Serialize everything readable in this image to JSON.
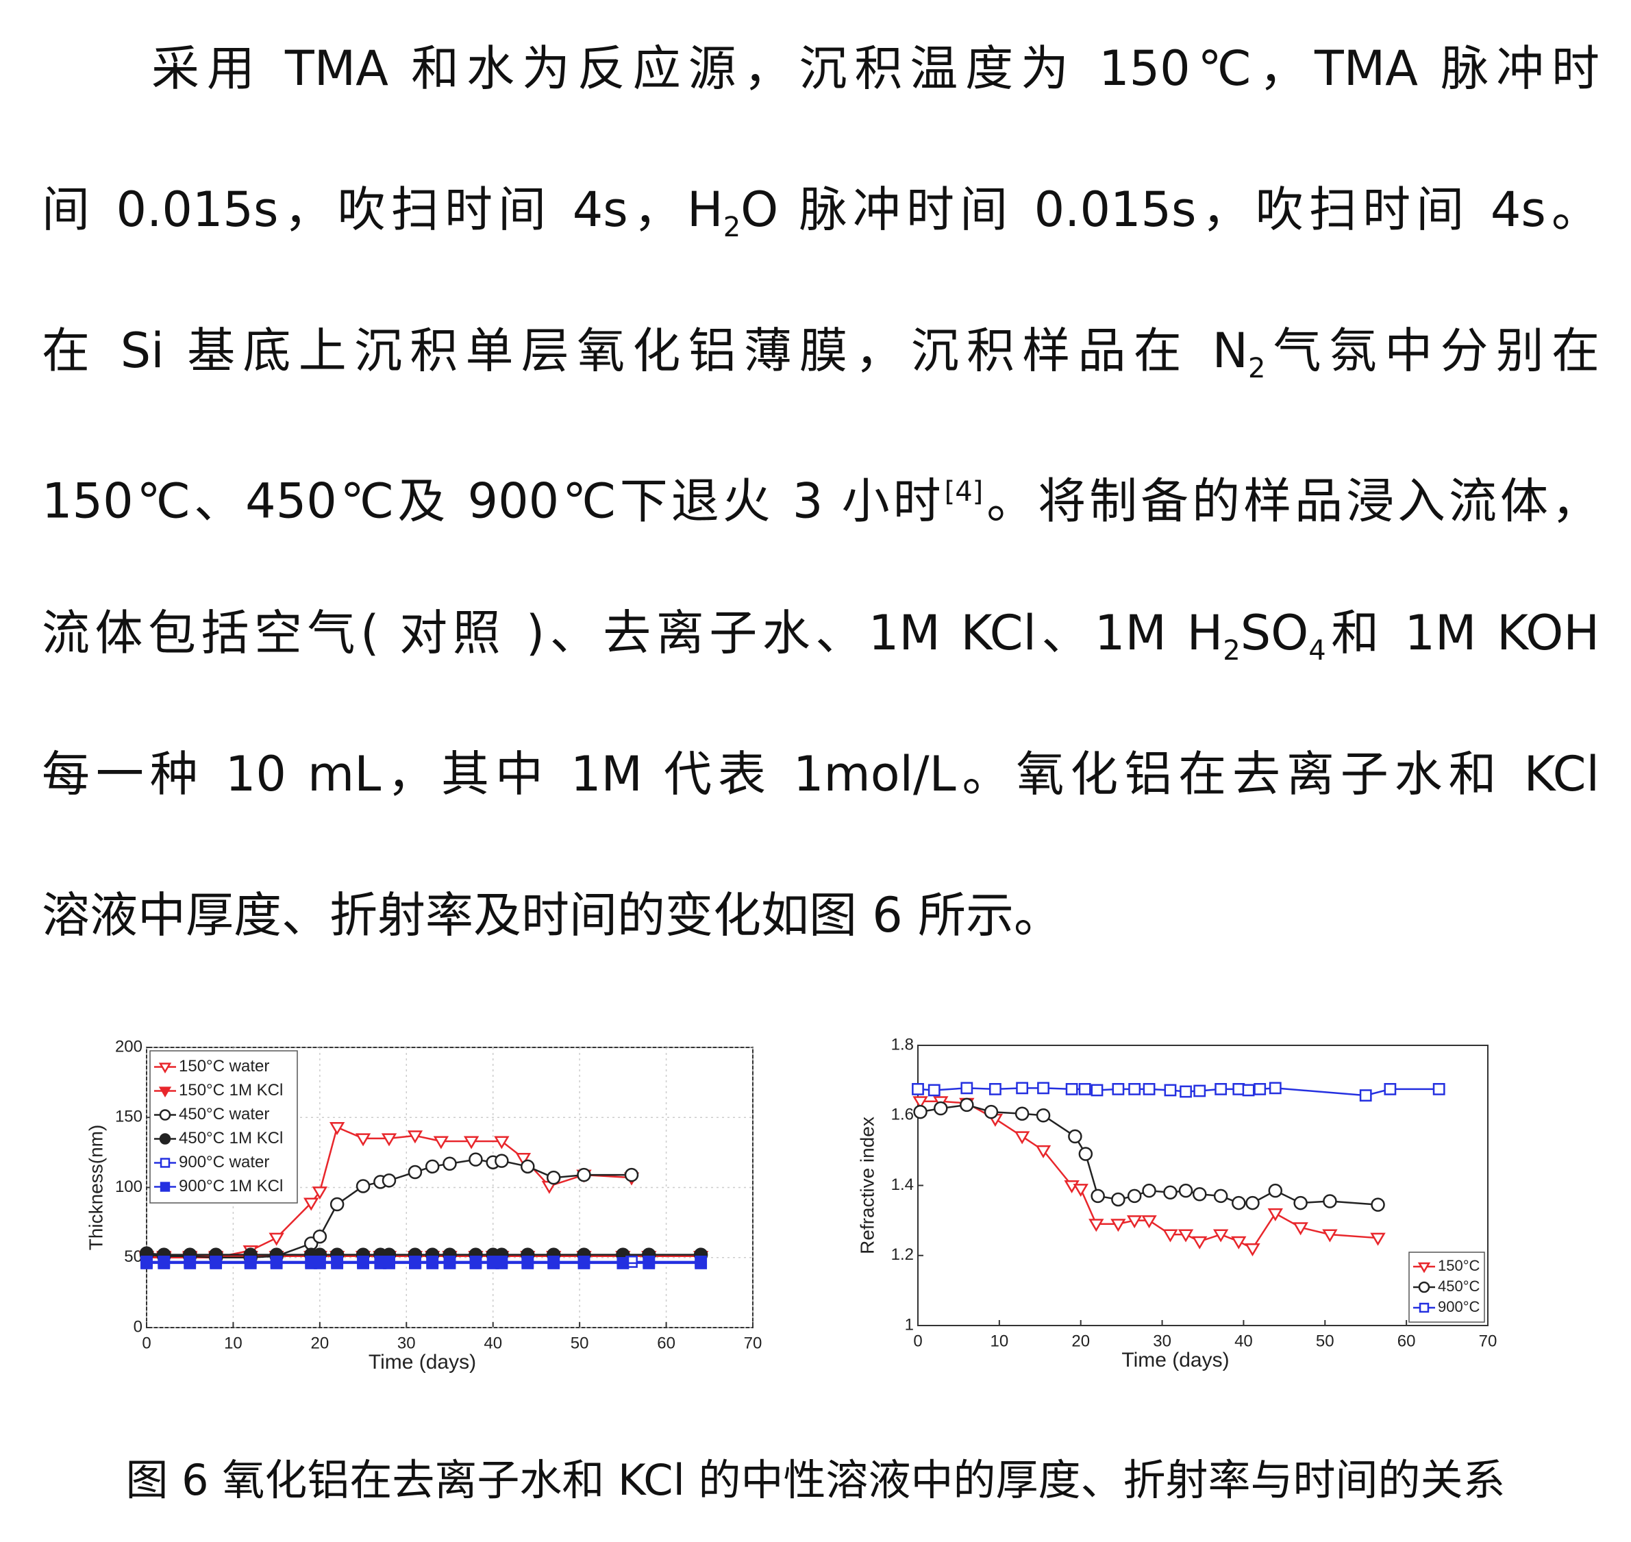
{
  "paragraph": {
    "lines": [
      [
        "采用 TMA 和水为反应源，沉积温度为 150℃，TMA 脉冲时"
      ],
      [
        "间 0.015s，吹扫时间 4s，H",
        {
          "sub": "2"
        },
        "O 脉冲时间 0.015s，吹扫时间 4s。"
      ],
      [
        "在 Si 基底上沉积单层氧化铝薄膜，沉积样品在 N",
        {
          "sub": "2"
        },
        "气氛中分别在"
      ],
      [
        "150℃、450℃及 900℃下退火 3 小时",
        {
          "sup": "[4]"
        },
        "。将制备的样品浸入流体，"
      ],
      [
        "流体包括空气( 对照 )、去离子水、1M KCl、1M H",
        {
          "sub": "2"
        },
        "SO",
        {
          "sub": "4"
        },
        "和 1M KOH"
      ],
      [
        "每一种 10 mL，其中 1M 代表 1mol/L。氧化铝在去离子水和 KCl"
      ],
      [
        "溶液中厚度、折射率及时间的变化如图 6 所示。"
      ]
    ]
  },
  "chart_data": [
    {
      "type": "line",
      "x_label": "Time (days)",
      "y_label": "Thickness(nm)",
      "xlim": [
        0,
        70
      ],
      "xticks": [
        0,
        10,
        20,
        30,
        40,
        50,
        60,
        70
      ],
      "ylim": [
        0,
        200
      ],
      "yticks": [
        0,
        50,
        100,
        150,
        200
      ],
      "grid": true,
      "legend": "upper left",
      "series": [
        {
          "name": "150°C water",
          "color": "#e8262b",
          "marker": "triangle-down",
          "filled": false,
          "x": [
            0,
            2,
            5,
            8,
            12,
            15,
            19,
            20,
            22,
            25,
            28,
            31,
            34,
            37.5,
            41,
            43.5,
            46.5,
            50.5,
            56
          ],
          "values": [
            50,
            50,
            50,
            50,
            55,
            64,
            89,
            97,
            143,
            135,
            135,
            137,
            133,
            133,
            133,
            121,
            101,
            109,
            107
          ]
        },
        {
          "name": "150°C 1M KCl",
          "color": "#e8262b",
          "marker": "triangle-down",
          "filled": true,
          "x": [
            0,
            2,
            5,
            8,
            12,
            15,
            19,
            20,
            22,
            25,
            27,
            28,
            31,
            33,
            35,
            38,
            40,
            41,
            44,
            47,
            50.5,
            55,
            58,
            64
          ],
          "values": [
            51,
            51,
            51,
            51,
            51,
            51,
            51,
            51,
            51,
            51,
            51,
            51,
            51,
            51,
            51,
            51,
            51,
            51,
            51,
            51,
            51,
            51,
            51,
            51
          ]
        },
        {
          "name": "450°C water",
          "color": "#222222",
          "marker": "circle",
          "filled": false,
          "x": [
            0,
            2,
            5,
            8,
            12,
            15,
            19,
            20,
            22,
            25,
            27,
            28,
            31,
            33,
            35,
            38,
            40,
            41,
            44,
            47,
            50.5,
            56
          ],
          "values": [
            52,
            51,
            51,
            50,
            50,
            51,
            60,
            65,
            88,
            101,
            104,
            105,
            111,
            115,
            117,
            120,
            118,
            119,
            115,
            107,
            109,
            109
          ]
        },
        {
          "name": "450°C 1M KCl",
          "color": "#222222",
          "marker": "circle",
          "filled": true,
          "x": [
            0,
            2,
            5,
            8,
            12,
            15,
            19,
            20,
            22,
            25,
            27,
            28,
            31,
            33,
            35,
            38,
            40,
            41,
            44,
            47,
            50.5,
            55,
            58,
            64
          ],
          "values": [
            53,
            52,
            52,
            52,
            52,
            52,
            52,
            52,
            52,
            52,
            52,
            52,
            52,
            52,
            52,
            52,
            52,
            52,
            52,
            52,
            52,
            52,
            52,
            52
          ]
        },
        {
          "name": "900°C water",
          "color": "#2430e0",
          "marker": "square",
          "filled": false,
          "x": [
            0,
            2,
            5,
            8,
            12,
            15,
            19,
            20,
            22,
            25,
            27,
            28,
            31,
            33,
            35,
            38,
            40,
            41,
            44,
            47,
            50.5,
            56,
            58,
            64
          ],
          "values": [
            47,
            47,
            47,
            47,
            47,
            47,
            47,
            47,
            47,
            47,
            47,
            47,
            47,
            47,
            47,
            47,
            47,
            47,
            47,
            47,
            47,
            47,
            47,
            47
          ]
        },
        {
          "name": "900°C 1M KCl",
          "color": "#2430e0",
          "marker": "square",
          "filled": true,
          "x": [
            0,
            2,
            5,
            8,
            12,
            15,
            19,
            20,
            22,
            25,
            27,
            28,
            31,
            33,
            35,
            38,
            40,
            41,
            44,
            47,
            50.5,
            55,
            58,
            64
          ],
          "values": [
            46,
            46,
            46,
            46,
            46,
            46,
            46,
            46,
            46,
            46,
            46,
            46,
            46,
            46,
            46,
            46,
            46,
            46,
            46,
            46,
            46,
            46,
            46,
            46
          ]
        }
      ]
    },
    {
      "type": "line",
      "x_label": "Time (days)",
      "y_label": "Refractive index",
      "xlim": [
        0,
        70
      ],
      "xticks": [
        0,
        10,
        20,
        30,
        40,
        50,
        60,
        70
      ],
      "ylim": [
        1,
        1.8
      ],
      "yticks": [
        1,
        1.2,
        1.4,
        1.6,
        1.8
      ],
      "grid": false,
      "legend": "lower right",
      "series": [
        {
          "name": "150°C",
          "color": "#e8262b",
          "marker": "triangle-down",
          "filled": false,
          "x": [
            0.3,
            2.8,
            6,
            9.5,
            12.8,
            15.4,
            18.9,
            20,
            21.9,
            24.6,
            26.6,
            28.4,
            31,
            32.9,
            34.6,
            37.2,
            39.4,
            41.1,
            43.9,
            47,
            50.6,
            56.5
          ],
          "values": [
            1.64,
            1.64,
            1.635,
            1.59,
            1.54,
            1.5,
            1.4,
            1.39,
            1.29,
            1.29,
            1.3,
            1.3,
            1.26,
            1.26,
            1.24,
            1.26,
            1.24,
            1.22,
            1.32,
            1.28,
            1.26,
            1.25
          ]
        },
        {
          "name": "450°C",
          "color": "#222222",
          "marker": "circle",
          "filled": false,
          "x": [
            0.3,
            2.8,
            6,
            9,
            12.8,
            15.4,
            19.3,
            20.6,
            22.1,
            24.6,
            26.6,
            28.4,
            31,
            32.9,
            34.6,
            37.2,
            39.4,
            41.1,
            43.9,
            47,
            50.6,
            56.5
          ],
          "values": [
            1.61,
            1.62,
            1.63,
            1.61,
            1.605,
            1.6,
            1.54,
            1.49,
            1.37,
            1.36,
            1.37,
            1.385,
            1.38,
            1.385,
            1.375,
            1.37,
            1.35,
            1.35,
            1.385,
            1.35,
            1.355,
            1.345
          ]
        },
        {
          "name": "900°C",
          "color": "#2430e0",
          "marker": "square",
          "filled": false,
          "x": [
            0,
            2,
            6,
            9.5,
            12.8,
            15.4,
            18.9,
            20.5,
            22,
            24.6,
            26.6,
            28.4,
            31,
            32.9,
            34.6,
            37.2,
            39.4,
            40.6,
            42,
            43.9,
            55,
            58,
            64
          ],
          "values": [
            1.675,
            1.672,
            1.678,
            1.675,
            1.678,
            1.678,
            1.675,
            1.675,
            1.672,
            1.675,
            1.675,
            1.675,
            1.672,
            1.668,
            1.67,
            1.675,
            1.675,
            1.672,
            1.675,
            1.678,
            1.657,
            1.675,
            1.675
          ]
        }
      ]
    }
  ],
  "caption": "图 6  氧化铝在去离子水和 KCl 的中性溶液中的厚度、折射率与时间的关系"
}
